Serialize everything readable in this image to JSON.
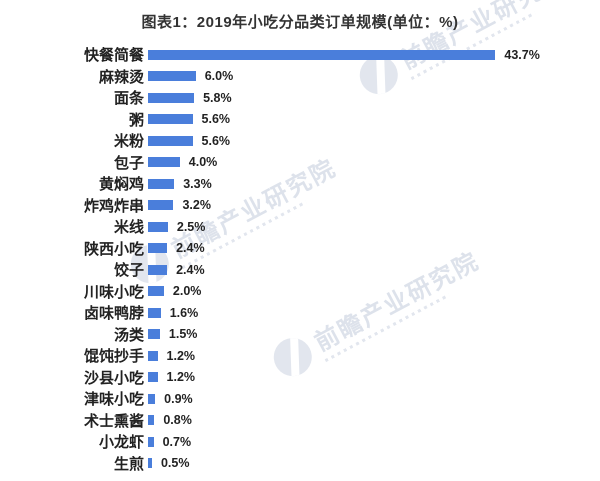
{
  "header": {
    "title": "图表1：2019年小吃分品类订单规模(单位：%)"
  },
  "chart_data": {
    "type": "bar",
    "orientation": "horizontal",
    "title": "图表1：2019年小吃分品类订单规模(单位：%)",
    "unit": "%",
    "categories": [
      "快餐简餐",
      "麻辣烫",
      "面条",
      "粥",
      "米粉",
      "包子",
      "黄焖鸡",
      "炸鸡炸串",
      "米线",
      "陕西小吃",
      "饺子",
      "川味小吃",
      "卤味鸭脖",
      "汤类",
      "馄饨抄手",
      "沙县小吃",
      "津味小吃",
      "术士熏酱",
      "小龙虾",
      "生煎"
    ],
    "values": [
      43.7,
      6.0,
      5.8,
      5.6,
      5.6,
      4.0,
      3.3,
      3.2,
      2.5,
      2.4,
      2.4,
      2.0,
      1.6,
      1.5,
      1.2,
      1.2,
      0.9,
      0.8,
      0.7,
      0.5
    ],
    "value_labels": [
      "43.7%",
      "6.0%",
      "5.8%",
      "5.6%",
      "5.6%",
      "4.0%",
      "3.3%",
      "3.2%",
      "2.5%",
      "2.4%",
      "2.4%",
      "2.0%",
      "1.6%",
      "1.5%",
      "1.2%",
      "1.2%",
      "0.9%",
      "0.8%",
      "0.7%",
      "0.5%"
    ],
    "xlim": [
      0,
      45
    ],
    "grid": false,
    "legend_position": "none",
    "bar_color": "#4a7edb"
  },
  "watermark": {
    "text": "前瞻产业研究院",
    "logo": "forward-swoosh-logo"
  },
  "colors": {
    "bar": "#4a7edb",
    "title_text": "#333333",
    "label_text": "#222222",
    "watermark": "#dde2eb",
    "background": "#ffffff"
  }
}
